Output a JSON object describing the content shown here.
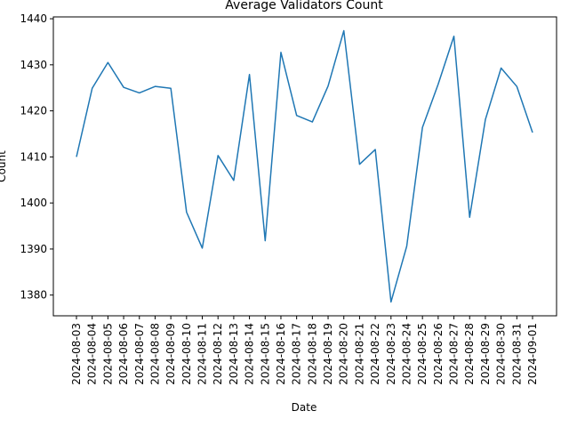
{
  "chart_data": {
    "type": "line",
    "title": "Average Validators Count",
    "xlabel": "Date",
    "ylabel": "Count",
    "x": [
      "2024-08-03",
      "2024-08-04",
      "2024-08-05",
      "2024-08-06",
      "2024-08-07",
      "2024-08-08",
      "2024-08-09",
      "2024-08-10",
      "2024-08-11",
      "2024-08-12",
      "2024-08-13",
      "2024-08-14",
      "2024-08-15",
      "2024-08-16",
      "2024-08-17",
      "2024-08-18",
      "2024-08-19",
      "2024-08-20",
      "2024-08-21",
      "2024-08-22",
      "2024-08-23",
      "2024-08-24",
      "2024-08-25",
      "2024-08-26",
      "2024-08-27",
      "2024-08-28",
      "2024-08-29",
      "2024-08-30",
      "2024-08-31",
      "2024-09-01"
    ],
    "series": [
      {
        "values": [
          1410.0,
          1424.9,
          1430.5,
          1425.1,
          1423.9,
          1425.3,
          1424.9,
          1398.0,
          1390.2,
          1410.3,
          1404.9,
          1427.9,
          1391.8,
          1432.7,
          1419.0,
          1417.6,
          1425.4,
          1437.4,
          1408.4,
          1411.6,
          1378.5,
          1390.6,
          1416.4,
          1425.8,
          1436.2,
          1396.9,
          1418.1,
          1429.3,
          1425.3,
          1415.3
        ],
        "color": "#1f77b4"
      }
    ],
    "yticks": [
      1380,
      1390,
      1400,
      1410,
      1420,
      1430,
      1440
    ],
    "ylim": [
      1375.5,
      1440.4
    ],
    "grid": false,
    "legend": "none"
  }
}
